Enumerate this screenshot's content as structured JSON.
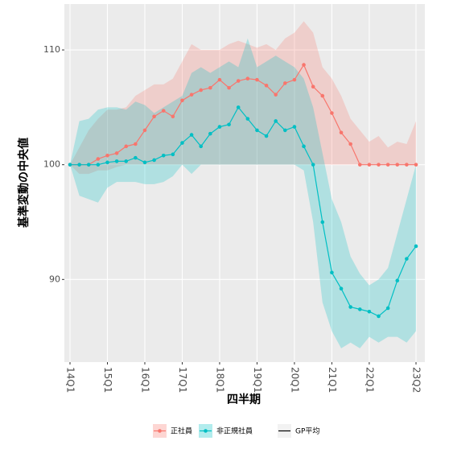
{
  "chart_data": {
    "type": "line",
    "xlabel": "四半期",
    "ylabel": "基準変動の中央値",
    "categories": [
      "14Q1",
      null,
      null,
      null,
      "15Q1",
      null,
      null,
      null,
      "16Q1",
      null,
      null,
      null,
      "17Q1",
      null,
      null,
      null,
      "18Q1",
      null,
      null,
      null,
      "19Q1",
      null,
      null,
      null,
      "20Q1",
      null,
      null,
      null,
      "21Q1",
      null,
      null,
      null,
      "22Q1",
      null,
      null,
      null,
      null,
      "23Q2"
    ],
    "ylim": [
      82.8,
      114
    ],
    "yticks": [
      90,
      100,
      110
    ],
    "grid": true,
    "legend": "bottom",
    "series": [
      {
        "name": "正社員",
        "color": "#f8766d",
        "values": [
          100,
          100,
          100,
          100.5,
          100.8,
          101,
          101.6,
          101.8,
          103,
          104.2,
          104.7,
          104.2,
          105.6,
          106.1,
          106.5,
          106.7,
          107.4,
          106.7,
          107.3,
          107.5,
          107.4,
          106.9,
          106.1,
          107.1,
          107.4,
          108.7,
          106.8,
          106,
          104.5,
          102.8,
          101.8,
          100,
          100,
          100,
          100,
          100,
          100,
          100
        ],
        "upper": [
          100,
          101.5,
          103,
          104,
          104.8,
          104.8,
          105,
          106,
          106.5,
          107,
          107,
          107.5,
          109,
          110.5,
          110,
          110,
          110,
          110.5,
          110.8,
          110.5,
          110.2,
          110.5,
          110,
          111,
          111.5,
          112.5,
          111.5,
          108.5,
          107.5,
          106,
          104,
          103,
          102,
          102.5,
          101.5,
          102,
          101.8,
          103.8
        ],
        "lower": [
          100,
          99.2,
          99.2,
          99.5,
          99.5,
          99.8,
          100,
          100,
          100,
          100,
          100,
          100,
          100,
          100,
          100,
          100,
          100,
          100,
          100,
          100,
          100,
          100,
          100,
          100,
          100,
          100,
          100,
          100,
          100,
          100,
          100,
          100,
          100,
          100,
          100,
          100,
          100,
          100
        ]
      },
      {
        "name": "非正規社員",
        "color": "#00bfc4",
        "values": [
          100,
          100,
          100,
          100,
          100.2,
          100.3,
          100.3,
          100.6,
          100.2,
          100.4,
          100.8,
          100.9,
          101.9,
          102.6,
          101.6,
          102.7,
          103.3,
          103.5,
          105,
          104,
          103,
          102.5,
          103.8,
          103,
          103.3,
          101.6,
          100,
          95,
          90.6,
          89.2,
          87.6,
          87.4,
          87.2,
          86.8,
          87.5,
          89.9,
          91.8,
          92.9
        ],
        "upper": [
          100,
          103.8,
          104,
          104.8,
          105,
          105,
          104.8,
          105.5,
          105.2,
          104.5,
          105,
          105.5,
          106,
          108,
          108.5,
          108,
          108.5,
          109,
          108.5,
          111,
          108.5,
          109,
          109.5,
          109,
          108.5,
          107.5,
          105,
          101,
          97,
          95,
          92,
          90.5,
          89.5,
          90,
          91,
          94,
          97,
          100
        ],
        "lower": [
          100,
          97.3,
          97,
          96.7,
          98,
          98.5,
          98.5,
          98.5,
          98.3,
          98.3,
          98.5,
          99,
          100,
          99.2,
          100,
          100,
          100,
          100,
          100,
          100,
          100,
          100,
          100,
          100,
          100,
          99.5,
          95,
          88,
          85.5,
          84,
          84.5,
          84,
          85,
          84.5,
          85,
          85,
          84.5,
          85.5
        ]
      },
      {
        "name": "GP平均",
        "color": "#000000"
      }
    ]
  }
}
